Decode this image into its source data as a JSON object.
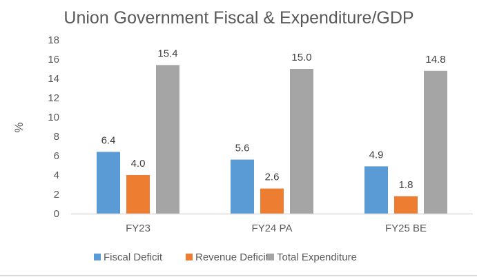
{
  "chart_data": {
    "type": "bar",
    "title": "Union Government Fiscal & Expenditure/GDP",
    "xlabel": "",
    "ylabel": "%",
    "ylim": [
      0,
      18
    ],
    "yticks": [
      0,
      2,
      4,
      6,
      8,
      10,
      12,
      14,
      16,
      18
    ],
    "ytick_labels": [
      "0",
      "2",
      "4",
      "6",
      "8",
      "10",
      "12",
      "14",
      "16",
      "18"
    ],
    "grid": false,
    "legend_position": "bottom",
    "categories": [
      "FY23",
      "FY24 PA",
      "FY25 BE"
    ],
    "series": [
      {
        "name": "Fiscal Deficit",
        "color": "#5b9bd5",
        "values": [
          6.4,
          5.6,
          4.9
        ],
        "labels": [
          "6.4",
          "5.6",
          "4.9"
        ]
      },
      {
        "name": "Revenue Deficit",
        "color": "#ed7d31",
        "values": [
          4.0,
          2.6,
          1.8
        ],
        "labels": [
          "4.0",
          "2.6",
          "1.8"
        ]
      },
      {
        "name": "Total Expenditure",
        "color": "#a5a5a5",
        "values": [
          15.4,
          15.0,
          14.8
        ],
        "labels": [
          "15.4",
          "15.0",
          "14.8"
        ]
      }
    ]
  }
}
